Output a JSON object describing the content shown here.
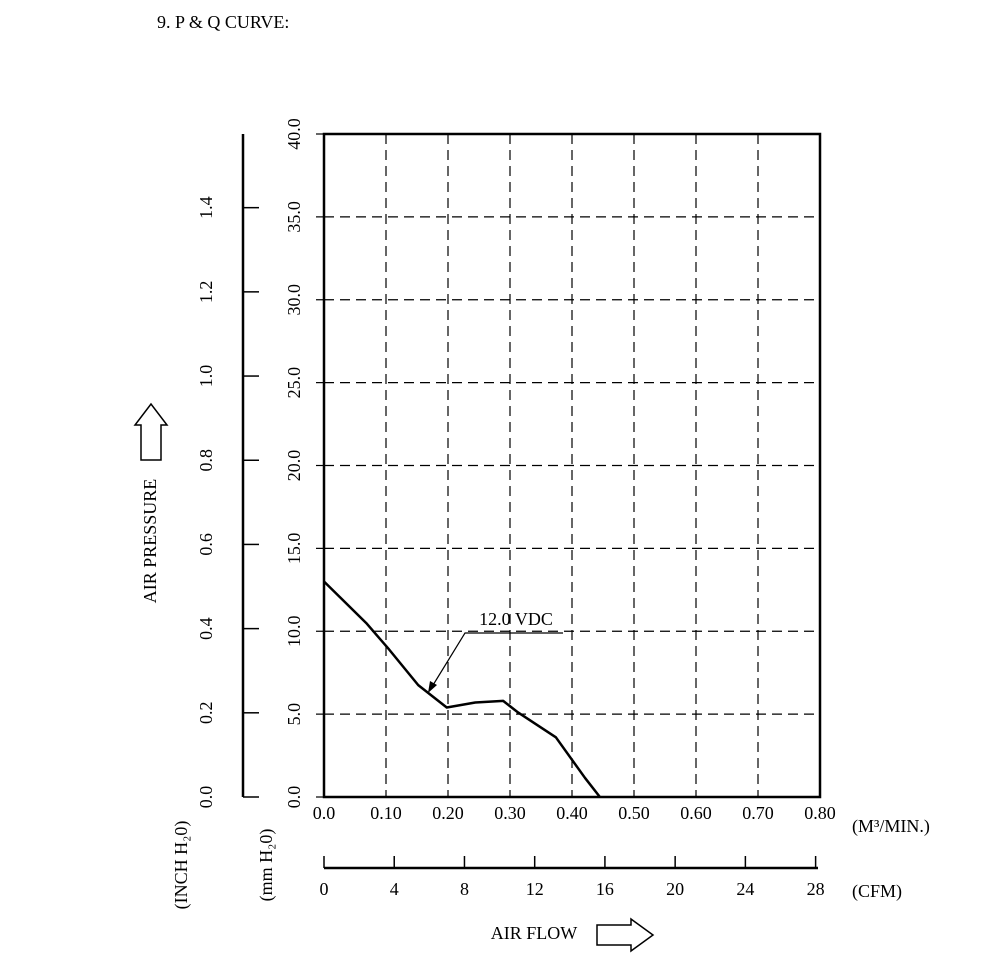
{
  "chart_data": {
    "type": "line",
    "title": "9. P & Q CURVE:",
    "xlabel": "AIR FLOW",
    "ylabel": "AIR PRESSURE",
    "x_unit": "(M³/MIN.)",
    "x2_unit": "(CFM)",
    "y_unit": "(mm H₂0)",
    "y2_unit": "(INCH H₂0)",
    "x": [
      0,
      0.068,
      0.105,
      0.152,
      0.198,
      0.244,
      0.289,
      0.313,
      0.374,
      0.421,
      0.445
    ],
    "series": [
      {
        "name": "12.0 VDC",
        "color": "#000000",
        "values": [
          13.0,
          10.5,
          8.9,
          6.75,
          5.4,
          5.7,
          5.8,
          5.1,
          3.6,
          1.15,
          0
        ]
      }
    ],
    "xlim": [
      0,
      0.8
    ],
    "xticks": [
      {
        "value": 0,
        "label": "0.0"
      },
      {
        "value": 0.1,
        "label": "0.10"
      },
      {
        "value": 0.2,
        "label": "0.20"
      },
      {
        "value": 0.3,
        "label": "0.30"
      },
      {
        "value": 0.4,
        "label": "0.40"
      },
      {
        "value": 0.5,
        "label": "0.50"
      },
      {
        "value": 0.6,
        "label": "0.60"
      },
      {
        "value": 0.7,
        "label": "0.70"
      },
      {
        "value": 0.8,
        "label": "0.80"
      }
    ],
    "x2lim": [
      0,
      28.25
    ],
    "x2ticks": [
      0,
      4,
      8,
      12,
      16,
      20,
      24,
      28
    ],
    "ylim": [
      0,
      40
    ],
    "yticks": [
      {
        "value": 0,
        "label": "0.0"
      },
      {
        "value": 5,
        "label": "5.0"
      },
      {
        "value": 10,
        "label": "10.0"
      },
      {
        "value": 15,
        "label": "15.0"
      },
      {
        "value": 20,
        "label": "20.0"
      },
      {
        "value": 25,
        "label": "25.0"
      },
      {
        "value": 30,
        "label": "30.0"
      },
      {
        "value": 35,
        "label": "35.0"
      },
      {
        "value": 40,
        "label": "40.0"
      }
    ],
    "y2lim": [
      0,
      1.575
    ],
    "y2ticks": [
      {
        "value": 0,
        "label": "0.0"
      },
      0.2,
      0.4,
      0.6,
      0.8,
      {
        "value": 1,
        "label": "1.0"
      },
      1.2,
      1.4
    ],
    "grid": true
  }
}
